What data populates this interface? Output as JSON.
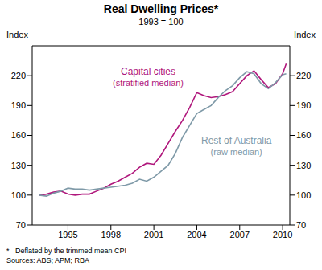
{
  "chart_data": {
    "type": "line",
    "title": "Real Dwelling Prices*",
    "subtitle": "1993 = 100",
    "y_label": "Index",
    "y2_label": "Index",
    "footnotes": [
      "*   Deflated by the trimmed mean CPI",
      "Sources: ABS; APM; RBA"
    ],
    "x": [
      1993,
      1993.5,
      1994,
      1994.5,
      1995,
      1995.5,
      1996,
      1996.5,
      1997,
      1997.5,
      1998,
      1998.5,
      1999,
      1999.5,
      2000,
      2000.5,
      2001,
      2001.5,
      2002,
      2002.5,
      2003,
      2003.5,
      2004,
      2004.5,
      2005,
      2005.5,
      2006,
      2006.5,
      2007,
      2007.5,
      2008,
      2008.5,
      2009,
      2009.5,
      2010,
      2010.25
    ],
    "series": [
      {
        "name": "Capital cities",
        "qualifier": "(stratified median)",
        "color": "#b0177c",
        "values": [
          100,
          101,
          103,
          104,
          101,
          100,
          101,
          101,
          104,
          107,
          111,
          114,
          118,
          122,
          128,
          132,
          131,
          140,
          152,
          164,
          175,
          188,
          203,
          200,
          198,
          199,
          201,
          204,
          212,
          220,
          225,
          216,
          208,
          212,
          222,
          232
        ]
      },
      {
        "name": "Rest of Australia",
        "qualifier": "(raw median)",
        "color": "#7f9aa8",
        "values": [
          100,
          99,
          102,
          104,
          107,
          106,
          106,
          105,
          106,
          107,
          108,
          109,
          110,
          112,
          116,
          114,
          118,
          124,
          130,
          142,
          158,
          170,
          182,
          186,
          190,
          198,
          205,
          210,
          218,
          224,
          222,
          212,
          207,
          213,
          221,
          222
        ]
      }
    ],
    "xlim": [
      1992.5,
      2010.5
    ],
    "xticks": [
      1995,
      1998,
      2001,
      2004,
      2007,
      2010
    ],
    "ylim": [
      70,
      250
    ],
    "yticks": [
      70,
      100,
      130,
      160,
      190,
      220
    ],
    "y2lim": [
      70,
      250
    ],
    "y2ticks": [
      70,
      100,
      130,
      160,
      190,
      220
    ],
    "grid": false
  }
}
